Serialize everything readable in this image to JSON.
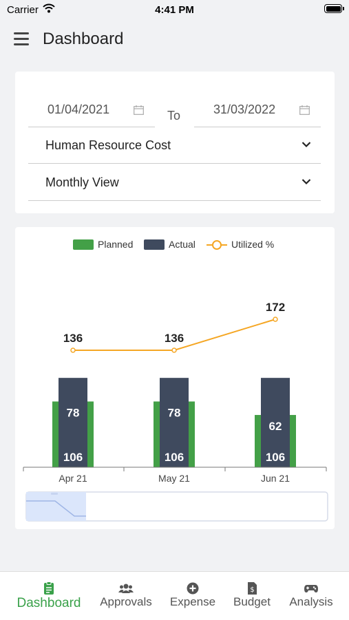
{
  "status_bar": {
    "carrier": "Carrier",
    "time": "4:41 PM"
  },
  "header": {
    "title": "Dashboard"
  },
  "filters": {
    "from_date": "01/04/2021",
    "to_label": "To",
    "to_date": "31/03/2022",
    "cost_type": "Human Resource Cost",
    "view": "Monthly View"
  },
  "colors": {
    "planned": "#43a047",
    "actual": "#3f4a5e",
    "utilized": "#f5a623",
    "accent": "#3aa14a"
  },
  "chart_data": {
    "type": "bar",
    "categories": [
      "Apr 21",
      "May 21",
      "Jun 21"
    ],
    "series": [
      {
        "name": "Planned",
        "values": [
          78,
          78,
          62
        ]
      },
      {
        "name": "Actual",
        "values": [
          106,
          106,
          106
        ]
      },
      {
        "name": "Utilized %",
        "type": "line",
        "values": [
          136,
          136,
          172
        ]
      }
    ],
    "legend": [
      "Planned",
      "Actual",
      "Utilized %"
    ],
    "legend_position": "top-center",
    "title": "",
    "xlabel": "",
    "ylabel": "",
    "grid": false
  },
  "tabs": [
    {
      "label": "Dashboard",
      "icon": "clipboard-icon",
      "active": true
    },
    {
      "label": "Approvals",
      "icon": "users-icon"
    },
    {
      "label": "Expense",
      "icon": "plus-circle-icon"
    },
    {
      "label": "Budget",
      "icon": "invoice-dollar-icon"
    },
    {
      "label": "Analysis",
      "icon": "gamepad-icon"
    }
  ]
}
